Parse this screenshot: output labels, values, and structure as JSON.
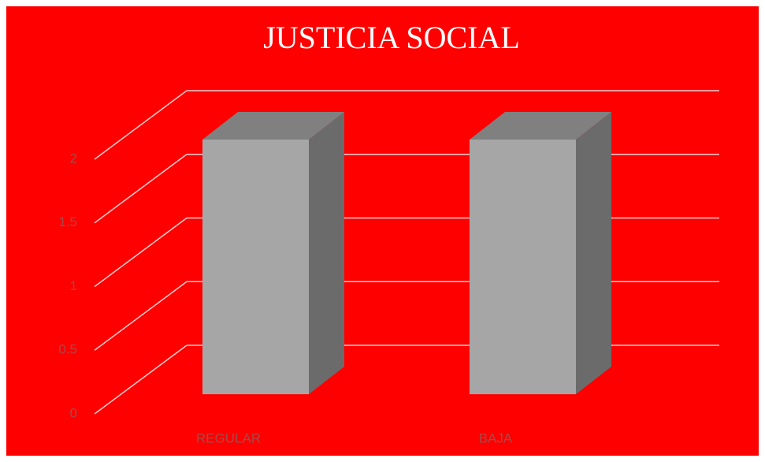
{
  "chart_data": {
    "type": "bar3d",
    "title": "JUSTICIA SOCIAL",
    "categories": [
      "REGULAR",
      "BAJA"
    ],
    "values": [
      2,
      2
    ],
    "color": "#a6a6a6",
    "ylim": [
      0,
      2
    ],
    "yticks": [
      0,
      0.5,
      1,
      1.5,
      2
    ],
    "grid": true
  }
}
